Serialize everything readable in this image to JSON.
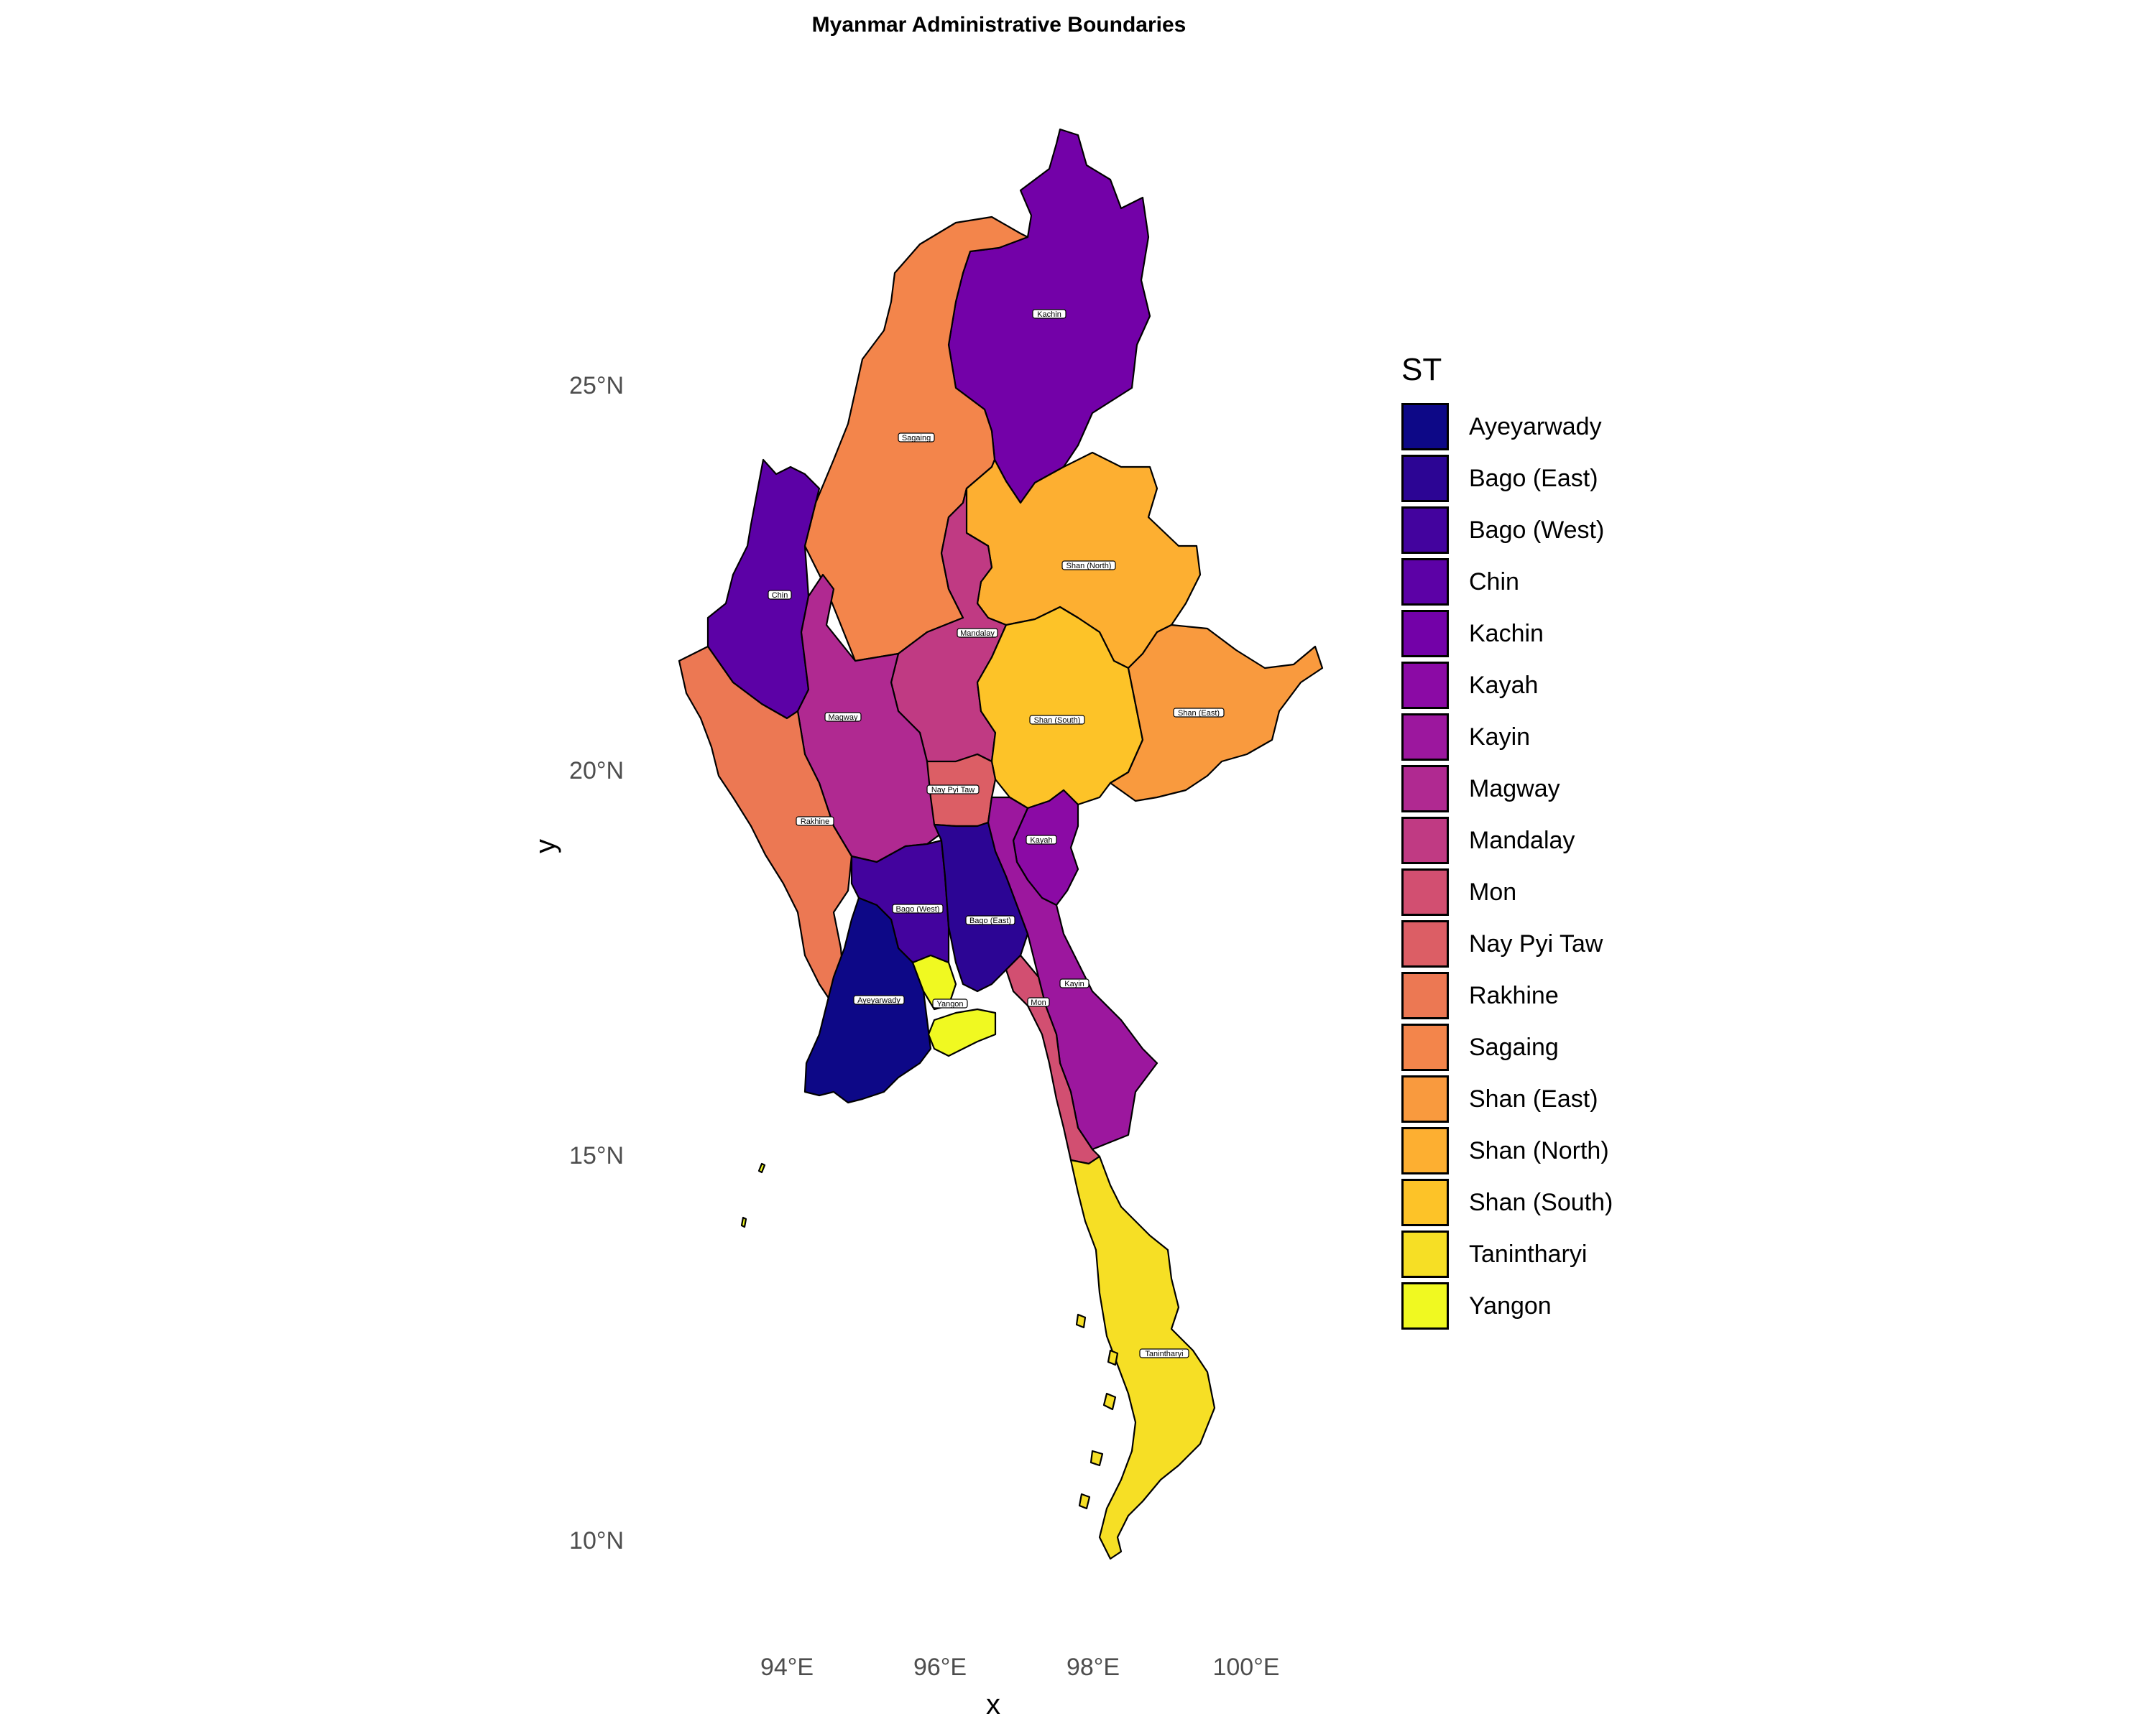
{
  "title": "Myanmar Administrative Boundaries",
  "axes": {
    "xlabel": "x",
    "ylabel": "y",
    "x_ticks": [
      "94°E",
      "96°E",
      "98°E",
      "100°E"
    ],
    "y_ticks": [
      "25°N",
      "20°N",
      "15°N",
      "10°N"
    ]
  },
  "legend": {
    "title": "ST",
    "items": [
      {
        "name": "Ayeyarwady",
        "color": "#0d0887"
      },
      {
        "name": "Bago (East)",
        "color": "#2c0594"
      },
      {
        "name": "Bago (West)",
        "color": "#43039e"
      },
      {
        "name": "Chin",
        "color": "#5c01a6"
      },
      {
        "name": "Kachin",
        "color": "#7301a8"
      },
      {
        "name": "Kayah",
        "color": "#8b0aa5"
      },
      {
        "name": "Kayin",
        "color": "#9c179e"
      },
      {
        "name": "Magway",
        "color": "#b02991"
      },
      {
        "name": "Mandalay",
        "color": "#c03a83"
      },
      {
        "name": "Mon",
        "color": "#d24f71"
      },
      {
        "name": "Nay Pyi Taw",
        "color": "#dc5e65"
      },
      {
        "name": "Rakhine",
        "color": "#ec7853"
      },
      {
        "name": "Sagaing",
        "color": "#f3854b"
      },
      {
        "name": "Shan (East)",
        "color": "#f99a3e"
      },
      {
        "name": "Shan (North)",
        "color": "#fdaf31"
      },
      {
        "name": "Shan (South)",
        "color": "#fdc328"
      },
      {
        "name": "Tanintharyi",
        "color": "#f6df25"
      },
      {
        "name": "Yangon",
        "color": "#f0f921"
      }
    ]
  },
  "map_labels": {
    "kachin": "Kachin",
    "sagaing": "Sagaing",
    "chin": "Chin",
    "shan_north": "Shan (North)",
    "mandalay": "Mandalay",
    "magway": "Magway",
    "shan_south": "Shan (South)",
    "shan_east": "Shan (East)",
    "nay_pyi_taw": "Nay Pyi Taw",
    "rakhine": "Rakhine",
    "kayah": "Kayah",
    "bago_west": "Bago (West)",
    "bago_east": "Bago (East)",
    "ayeyarwady": "Ayeyarwady",
    "yangon": "Yangon",
    "mon": "Mon",
    "kayin": "Kayin",
    "tanintharyi": "Tanintharyi"
  }
}
